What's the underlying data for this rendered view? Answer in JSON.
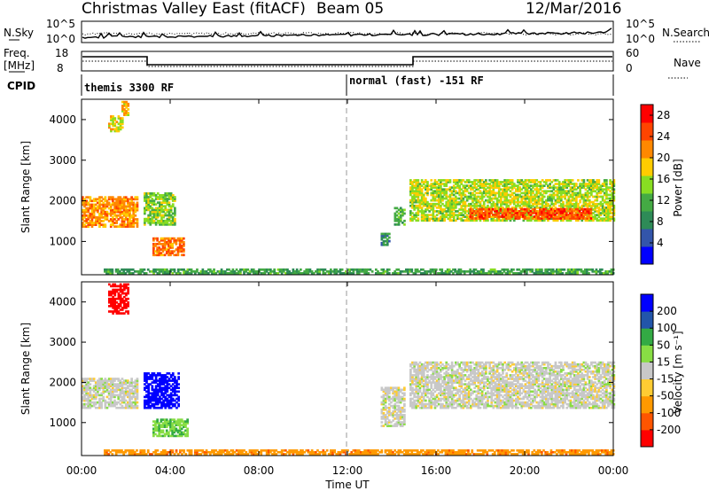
{
  "header": {
    "station": "Christmas Valley East (fitACF)",
    "beam": "Beam 05",
    "date": "12/Mar/2016"
  },
  "top_panels": {
    "nsky_label": "N.Sky",
    "nsearch_label": "N.Search",
    "nsky_ticks": [
      "10^5",
      "10^0"
    ],
    "freq_label_1": "Freq.",
    "freq_label_2": "[MHz]",
    "freq_ticks": [
      "18",
      "8"
    ],
    "nave_label": "Nave",
    "nave_ticks": [
      "60",
      "0"
    ],
    "cpid_label": "CPID",
    "cpid_segments": [
      {
        "label": "themis 3300 RF",
        "start": "00:00"
      },
      {
        "label": "normal (fast) -151 RF",
        "start": "12:00"
      }
    ]
  },
  "colors": {
    "power_scale": [
      "#0000ff",
      "#3355aa",
      "#2e8b57",
      "#44aa44",
      "#88dd22",
      "#ffcc00",
      "#ff8800",
      "#ff4400",
      "#ff0000"
    ],
    "velocity_scale": [
      "#ff0000",
      "#ff5500",
      "#ff9900",
      "#ffcc33",
      "#c8c8c8",
      "#88dd44",
      "#33aa44",
      "#2255aa",
      "#0000ff"
    ]
  },
  "chart_data": [
    {
      "type": "heatmap",
      "name": "power",
      "xlabel": "Time UT",
      "ylabel": "Slant Range [km]",
      "xlim": [
        "00:00",
        "24:00"
      ],
      "ylim": [
        180,
        4500
      ],
      "x_ticks": [
        "00:00",
        "04:00",
        "08:00",
        "12:00",
        "16:00",
        "20:00",
        "00:00"
      ],
      "y_ticks": [
        1000,
        2000,
        3000,
        4000
      ],
      "colorbar_label": "Power [dB]",
      "colorbar_ticks": [
        4,
        8,
        12,
        16,
        20,
        24,
        28
      ],
      "colorbar_range": [
        0,
        30
      ],
      "marker_time": "12:00",
      "regions": [
        {
          "t": [
            0.0,
            2.5
          ],
          "r": [
            1350,
            2100
          ],
          "level": 22
        },
        {
          "t": [
            1.2,
            1.8
          ],
          "r": [
            3700,
            4100
          ],
          "level": 18
        },
        {
          "t": [
            1.8,
            2.1
          ],
          "r": [
            4100,
            4450
          ],
          "level": 20
        },
        {
          "t": [
            2.8,
            4.2
          ],
          "r": [
            1400,
            2200
          ],
          "level": 14
        },
        {
          "t": [
            3.2,
            4.6
          ],
          "r": [
            650,
            1100
          ],
          "level": 24
        },
        {
          "t": [
            13.5,
            13.9
          ],
          "r": [
            900,
            1200
          ],
          "level": 8
        },
        {
          "t": [
            14.1,
            14.6
          ],
          "r": [
            1400,
            1850
          ],
          "level": 12
        },
        {
          "t": [
            14.8,
            24.0
          ],
          "r": [
            1500,
            2500
          ],
          "level": 16
        },
        {
          "t": [
            17.5,
            23.0
          ],
          "r": [
            1550,
            1800
          ],
          "level": 26
        },
        {
          "t": [
            1.0,
            24.0
          ],
          "r": [
            200,
            320
          ],
          "level": 10
        }
      ]
    },
    {
      "type": "heatmap",
      "name": "velocity",
      "xlabel": "Time UT",
      "ylabel": "Slant Range [km]",
      "xlim": [
        "00:00",
        "24:00"
      ],
      "ylim": [
        180,
        4500
      ],
      "x_ticks": [
        "00:00",
        "04:00",
        "08:00",
        "12:00",
        "16:00",
        "20:00",
        "00:00"
      ],
      "y_ticks": [
        1000,
        2000,
        3000,
        4000
      ],
      "colorbar_label": "Velocity [m s⁻¹]",
      "colorbar_ticks": [
        200,
        100,
        50,
        15,
        -15,
        -50,
        -100,
        -200
      ],
      "marker_time": "12:00",
      "regions": [
        {
          "t": [
            0.0,
            2.5
          ],
          "r": [
            1350,
            2100
          ],
          "velocity": 0
        },
        {
          "t": [
            1.2,
            2.1
          ],
          "r": [
            3700,
            4450
          ],
          "velocity": -180
        },
        {
          "t": [
            2.8,
            4.4
          ],
          "r": [
            1350,
            2250
          ],
          "velocity": 180
        },
        {
          "t": [
            3.2,
            4.8
          ],
          "r": [
            650,
            1100
          ],
          "velocity": 40
        },
        {
          "t": [
            13.5,
            14.6
          ],
          "r": [
            900,
            1850
          ],
          "velocity": 0
        },
        {
          "t": [
            14.8,
            24.0
          ],
          "r": [
            1350,
            2500
          ],
          "velocity": 0
        },
        {
          "t": [
            1.0,
            24.0
          ],
          "r": [
            200,
            320
          ],
          "velocity": -60
        }
      ]
    }
  ]
}
